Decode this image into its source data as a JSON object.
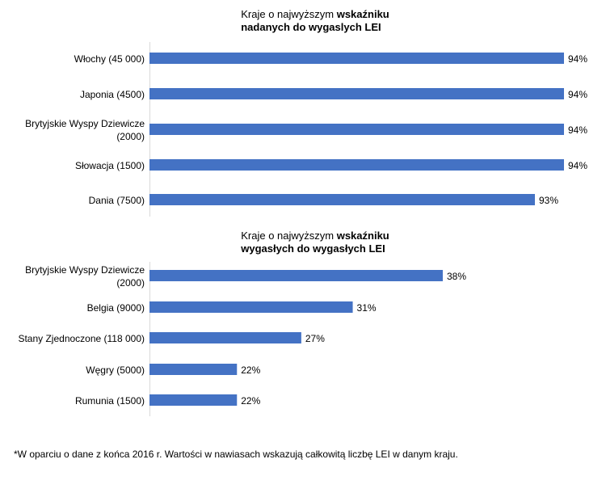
{
  "chart_data": [
    {
      "type": "bar",
      "orientation": "horizontal",
      "title_normal": "Kraje o najwyższym ",
      "title_bold_1": "wskaźniku",
      "title_bold_2": "nadanych do wygaslych LEI",
      "categories": [
        "Włochy (45 000)",
        "Japonia (4500)",
        "Brytyjskie Wyspy Dziewicze (2000)",
        "Słowacja (1500)",
        "Dania (7500)"
      ],
      "category_lines": [
        [
          "Włochy (45 000)"
        ],
        [
          "Japonia (4500)"
        ],
        [
          "Brytyjskie Wyspy Dziewicze",
          "(2000)"
        ],
        [
          "Słowacja (1500)"
        ],
        [
          "Dania (7500)"
        ]
      ],
      "values": [
        94.0,
        94.0,
        94.0,
        94.0,
        93.0
      ],
      "labels": [
        "94%",
        "94%",
        "94%",
        "94%",
        "93%"
      ],
      "xlim": [
        79.75,
        94
      ],
      "color": "#4472C4"
    },
    {
      "type": "bar",
      "orientation": "horizontal",
      "title_normal": "Kraje o najwyższym ",
      "title_bold_1": "wskaźniku",
      "title_bold_2": "wygasłych do wygasłych LEI",
      "categories": [
        "Brytyjskie Wyspy Dziewicze (2000)",
        "Belgia (9000)",
        "Stany Zjednoczone (118 000)",
        "Węgry (5000)",
        "Rumunia (1500)"
      ],
      "category_lines": [
        [
          "Brytyjskie Wyspy Dziewicze",
          "(2000)"
        ],
        [
          "Belgia (9000)"
        ],
        [
          "Stany Zjednoczone (118 000)"
        ],
        [
          "Węgry (5000)"
        ],
        [
          "Rumunia (1500)"
        ]
      ],
      "values": [
        38,
        31,
        27,
        22,
        22
      ],
      "labels": [
        "38%",
        "31%",
        "27%",
        "22%",
        "22%"
      ],
      "xlim": [
        15.2,
        38
      ],
      "color": "#4472C4"
    }
  ],
  "footnote": "*W oparciu o dane z końca 2016 r. Wartości w nawiasach wskazują całkowitą liczbę LEI w danym kraju."
}
